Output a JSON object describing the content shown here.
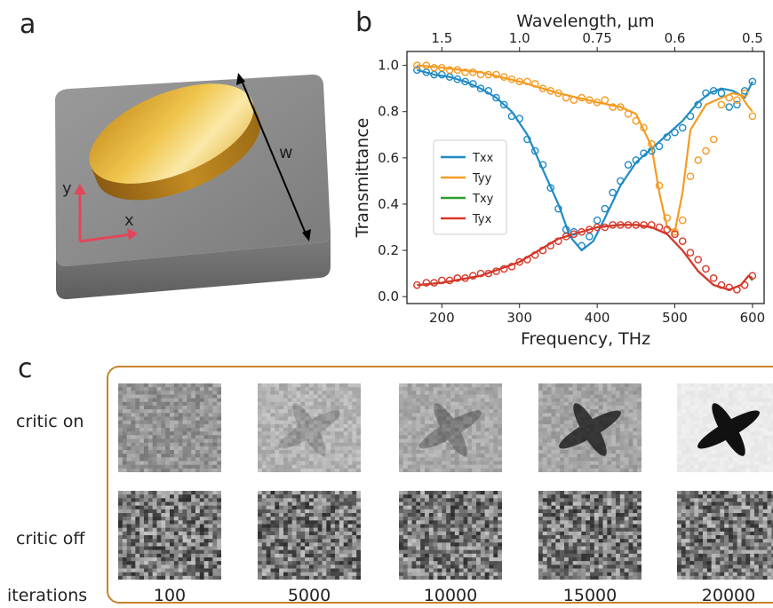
{
  "panels": {
    "a": "a",
    "b": "b",
    "c": "c"
  },
  "panel_a": {
    "width_label": "w",
    "x_axis": "x",
    "y_axis": "y"
  },
  "chart_data": {
    "type": "line",
    "xlabel": "Frequency, THz",
    "ylabel": "Transmittance",
    "top_xlabel": "Wavelength, μm",
    "xlim": [
      155,
      615
    ],
    "ylim": [
      -0.03,
      1.06
    ],
    "x_ticks": [
      200,
      300,
      400,
      500,
      600
    ],
    "y_ticks": [
      0.0,
      0.2,
      0.4,
      0.6,
      0.8,
      1.0
    ],
    "top_ticks": [
      {
        "label": "1.5",
        "freq": 200
      },
      {
        "label": "1.0",
        "freq": 300
      },
      {
        "label": "0.75",
        "freq": 400
      },
      {
        "label": "0.6",
        "freq": 500
      },
      {
        "label": "0.5",
        "freq": 600
      }
    ],
    "legend": "left",
    "series": [
      {
        "name": "Txx",
        "color": "#1f8bc5",
        "x": [
          168,
          190,
          210,
          230,
          250,
          270,
          290,
          310,
          330,
          350,
          365,
          380,
          395,
          410,
          430,
          450,
          470,
          490,
          510,
          530,
          545,
          560,
          575,
          590,
          600
        ],
        "y": [
          0.98,
          0.96,
          0.95,
          0.93,
          0.9,
          0.86,
          0.8,
          0.7,
          0.55,
          0.4,
          0.26,
          0.2,
          0.24,
          0.34,
          0.48,
          0.58,
          0.64,
          0.7,
          0.76,
          0.84,
          0.88,
          0.9,
          0.89,
          0.86,
          0.93
        ],
        "markers_x": [
          168,
          180,
          190,
          200,
          210,
          220,
          230,
          240,
          250,
          260,
          270,
          280,
          290,
          300,
          310,
          320,
          330,
          340,
          350,
          360,
          370,
          380,
          390,
          400,
          410,
          420,
          430,
          440,
          450,
          460,
          470,
          480,
          490,
          500,
          510,
          520,
          530,
          540,
          550,
          560,
          570,
          580,
          590,
          600
        ],
        "markers_y": [
          0.98,
          0.97,
          0.96,
          0.96,
          0.95,
          0.94,
          0.93,
          0.92,
          0.9,
          0.89,
          0.86,
          0.83,
          0.78,
          0.77,
          0.68,
          0.63,
          0.57,
          0.47,
          0.38,
          0.29,
          0.28,
          0.22,
          0.26,
          0.33,
          0.38,
          0.45,
          0.5,
          0.57,
          0.59,
          0.62,
          0.63,
          0.65,
          0.69,
          0.71,
          0.73,
          0.78,
          0.83,
          0.88,
          0.89,
          0.88,
          0.82,
          0.83,
          0.89,
          0.93
        ]
      },
      {
        "name": "Tyy",
        "color": "#f59b22",
        "x": [
          168,
          200,
          250,
          300,
          350,
          400,
          430,
          450,
          470,
          480,
          490,
          500,
          510,
          520,
          540,
          560,
          575,
          585,
          595,
          600
        ],
        "y": [
          1.0,
          0.99,
          0.97,
          0.93,
          0.88,
          0.84,
          0.82,
          0.79,
          0.65,
          0.45,
          0.3,
          0.28,
          0.45,
          0.72,
          0.83,
          0.86,
          0.88,
          0.87,
          0.82,
          0.8
        ],
        "markers_x": [
          168,
          180,
          190,
          200,
          210,
          220,
          230,
          240,
          250,
          260,
          270,
          280,
          290,
          300,
          310,
          320,
          330,
          340,
          350,
          360,
          370,
          380,
          390,
          400,
          410,
          420,
          430,
          440,
          450,
          460,
          470,
          480,
          490,
          500,
          510,
          520,
          530,
          540,
          550,
          560,
          570,
          580,
          590,
          600
        ],
        "markers_y": [
          1.0,
          1.0,
          0.99,
          0.99,
          0.98,
          0.98,
          0.97,
          0.97,
          0.96,
          0.96,
          0.96,
          0.95,
          0.94,
          0.93,
          0.93,
          0.92,
          0.9,
          0.89,
          0.88,
          0.86,
          0.85,
          0.86,
          0.85,
          0.84,
          0.85,
          0.82,
          0.82,
          0.79,
          0.76,
          0.73,
          0.66,
          0.48,
          0.34,
          0.28,
          0.33,
          0.52,
          0.59,
          0.63,
          0.68,
          0.83,
          0.86,
          0.85,
          0.88,
          0.78
        ]
      },
      {
        "name": "Txy",
        "color": "#2ca02c",
        "x": [
          168,
          200,
          250,
          300,
          350,
          400,
          430,
          450,
          470,
          490,
          510,
          530,
          550,
          570,
          585,
          595,
          600
        ],
        "y": [
          0.05,
          0.06,
          0.09,
          0.15,
          0.25,
          0.3,
          0.31,
          0.31,
          0.3,
          0.27,
          0.2,
          0.11,
          0.05,
          0.03,
          0.05,
          0.09,
          0.07
        ],
        "markers_x": [],
        "markers_y": []
      },
      {
        "name": "Tyx",
        "color": "#d9372b",
        "x": [
          168,
          200,
          250,
          300,
          350,
          400,
          430,
          450,
          470,
          490,
          510,
          530,
          550,
          570,
          585,
          595,
          600
        ],
        "y": [
          0.05,
          0.06,
          0.09,
          0.15,
          0.25,
          0.3,
          0.31,
          0.31,
          0.3,
          0.27,
          0.2,
          0.11,
          0.05,
          0.03,
          0.05,
          0.09,
          0.08
        ],
        "markers_x": [
          168,
          180,
          190,
          200,
          210,
          220,
          230,
          240,
          250,
          260,
          270,
          280,
          290,
          300,
          310,
          320,
          330,
          340,
          350,
          360,
          370,
          380,
          390,
          400,
          410,
          420,
          430,
          440,
          450,
          460,
          470,
          480,
          490,
          500,
          510,
          520,
          530,
          540,
          550,
          560,
          570,
          580,
          590,
          600
        ],
        "markers_y": [
          0.05,
          0.06,
          0.06,
          0.07,
          0.07,
          0.08,
          0.08,
          0.09,
          0.1,
          0.1,
          0.11,
          0.12,
          0.13,
          0.15,
          0.16,
          0.18,
          0.2,
          0.22,
          0.24,
          0.26,
          0.27,
          0.28,
          0.29,
          0.3,
          0.3,
          0.31,
          0.31,
          0.31,
          0.31,
          0.31,
          0.31,
          0.3,
          0.29,
          0.27,
          0.24,
          0.19,
          0.16,
          0.12,
          0.08,
          0.05,
          0.04,
          0.03,
          0.05,
          0.09
        ]
      }
    ]
  },
  "panel_c": {
    "rows": [
      "critic on",
      "critic off"
    ],
    "footer_label": "iterations",
    "iterations": [
      "100",
      "5000",
      "10000",
      "15000",
      "20000"
    ]
  }
}
